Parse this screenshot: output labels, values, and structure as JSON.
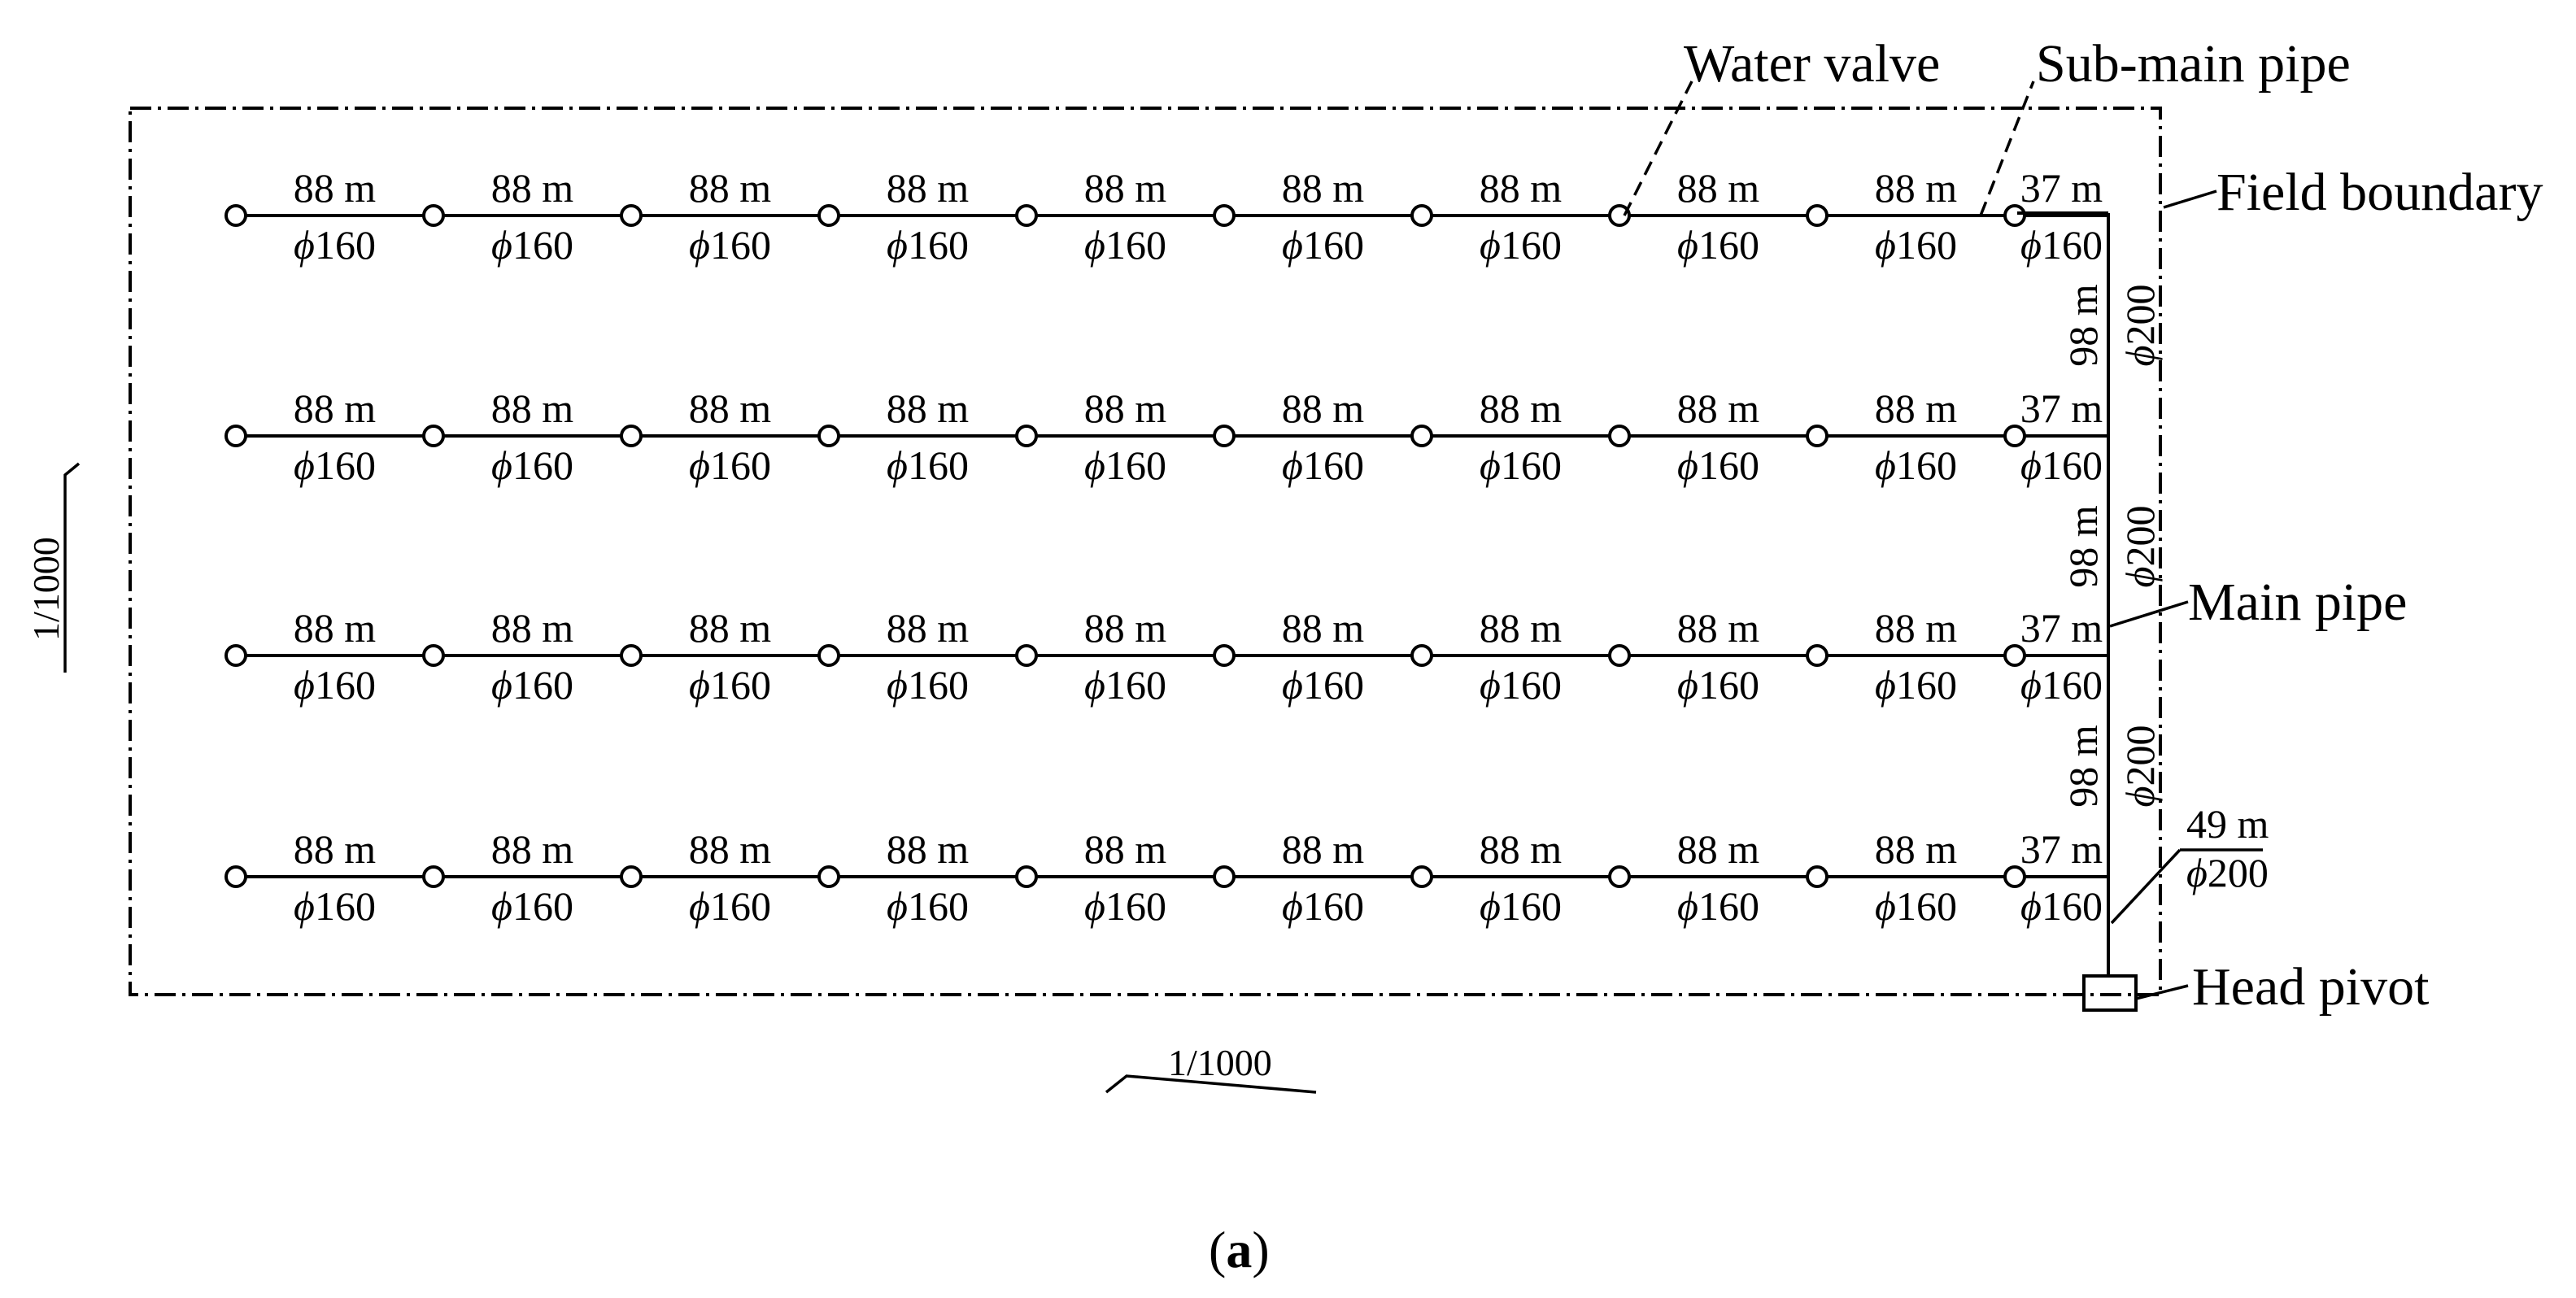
{
  "diagram": {
    "rows": [
      {
        "segments": [
          "88 m",
          "88 m",
          "88 m",
          "88 m",
          "88 m",
          "88 m",
          "88 m",
          "88 m",
          "88 m",
          "37 m"
        ],
        "diameters": [
          "160",
          "160",
          "160",
          "160",
          "160",
          "160",
          "160",
          "160",
          "160",
          "160"
        ]
      },
      {
        "segments": [
          "88 m",
          "88 m",
          "88 m",
          "88 m",
          "88 m",
          "88 m",
          "88 m",
          "88 m",
          "88 m",
          "37 m"
        ],
        "diameters": [
          "160",
          "160",
          "160",
          "160",
          "160",
          "160",
          "160",
          "160",
          "160",
          "160"
        ]
      },
      {
        "segments": [
          "88 m",
          "88 m",
          "88 m",
          "88 m",
          "88 m",
          "88 m",
          "88 m",
          "88 m",
          "88 m",
          "37 m"
        ],
        "diameters": [
          "160",
          "160",
          "160",
          "160",
          "160",
          "160",
          "160",
          "160",
          "160",
          "160"
        ]
      },
      {
        "segments": [
          "88 m",
          "88 m",
          "88 m",
          "88 m",
          "88 m",
          "88 m",
          "88 m",
          "88 m",
          "88 m",
          "37 m"
        ],
        "diameters": [
          "160",
          "160",
          "160",
          "160",
          "160",
          "160",
          "160",
          "160",
          "160",
          "160"
        ]
      }
    ],
    "main_segments": [
      {
        "length": "98 m",
        "diameter": "200"
      },
      {
        "length": "98 m",
        "diameter": "200"
      },
      {
        "length": "98 m",
        "diameter": "200"
      }
    ],
    "inlet": {
      "length": "49 m",
      "diameter": "200"
    },
    "phi_symbol": "ϕ",
    "labels": {
      "water_valve": "Water valve",
      "sub_main_pipe": "Sub-main pipe",
      "field_boundary": "Field boundary",
      "main_pipe": "Main pipe",
      "head_pivot": "Head pivot"
    },
    "scale_x": "1/1000",
    "scale_y": "1/1000",
    "caption": {
      "open": "(",
      "letter": "a",
      "close": ")"
    }
  }
}
